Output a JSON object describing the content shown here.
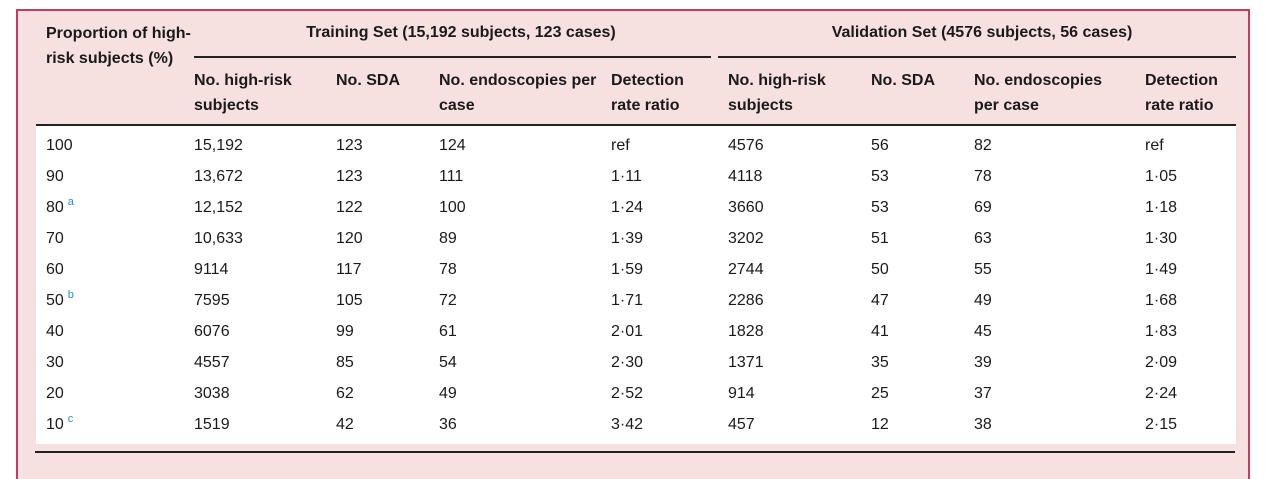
{
  "table": {
    "row_header": "Proportion of high-risk subjects (%)",
    "groups": [
      "Training Set (15,192 subjects, 123 cases)",
      "Validation Set (4576 subjects, 56 cases)"
    ],
    "subheaders": [
      "No. high-risk subjects",
      "No. SDA",
      "No. endoscopies per case",
      "Detection rate ratio",
      "No. high-risk subjects",
      "No. SDA",
      "No. endoscopies per case",
      "Detection rate ratio"
    ],
    "rows": [
      {
        "p": "100",
        "fn": "",
        "v": [
          "15,192",
          "123",
          "124",
          "ref",
          "4576",
          "56",
          "82",
          "ref"
        ]
      },
      {
        "p": "90",
        "fn": "",
        "v": [
          "13,672",
          "123",
          "111",
          "1·11",
          "4118",
          "53",
          "78",
          "1·05"
        ]
      },
      {
        "p": "80",
        "fn": "a",
        "v": [
          "12,152",
          "122",
          "100",
          "1·24",
          "3660",
          "53",
          "69",
          "1·18"
        ]
      },
      {
        "p": "70",
        "fn": "",
        "v": [
          "10,633",
          "120",
          "89",
          "1·39",
          "3202",
          "51",
          "63",
          "1·30"
        ]
      },
      {
        "p": "60",
        "fn": "",
        "v": [
          "9114",
          "117",
          "78",
          "1·59",
          "2744",
          "50",
          "55",
          "1·49"
        ]
      },
      {
        "p": "50",
        "fn": "b",
        "v": [
          "7595",
          "105",
          "72",
          "1·71",
          "2286",
          "47",
          "49",
          "1·68"
        ]
      },
      {
        "p": "40",
        "fn": "",
        "v": [
          "6076",
          "99",
          "61",
          "2·01",
          "1828",
          "41",
          "45",
          "1·83"
        ]
      },
      {
        "p": "30",
        "fn": "",
        "v": [
          "4557",
          "85",
          "54",
          "2·30",
          "1371",
          "35",
          "39",
          "2·09"
        ]
      },
      {
        "p": "20",
        "fn": "",
        "v": [
          "3038",
          "62",
          "49",
          "2·52",
          "914",
          "25",
          "37",
          "2·24"
        ]
      },
      {
        "p": "10",
        "fn": "c",
        "v": [
          "1519",
          "42",
          "36",
          "3·42",
          "457",
          "12",
          "38",
          "2·15"
        ]
      }
    ]
  },
  "colors": {
    "frame_border": "#c93a5c",
    "frame_bg": "#f6e0e0",
    "footnote_link": "#2a8fc7"
  }
}
